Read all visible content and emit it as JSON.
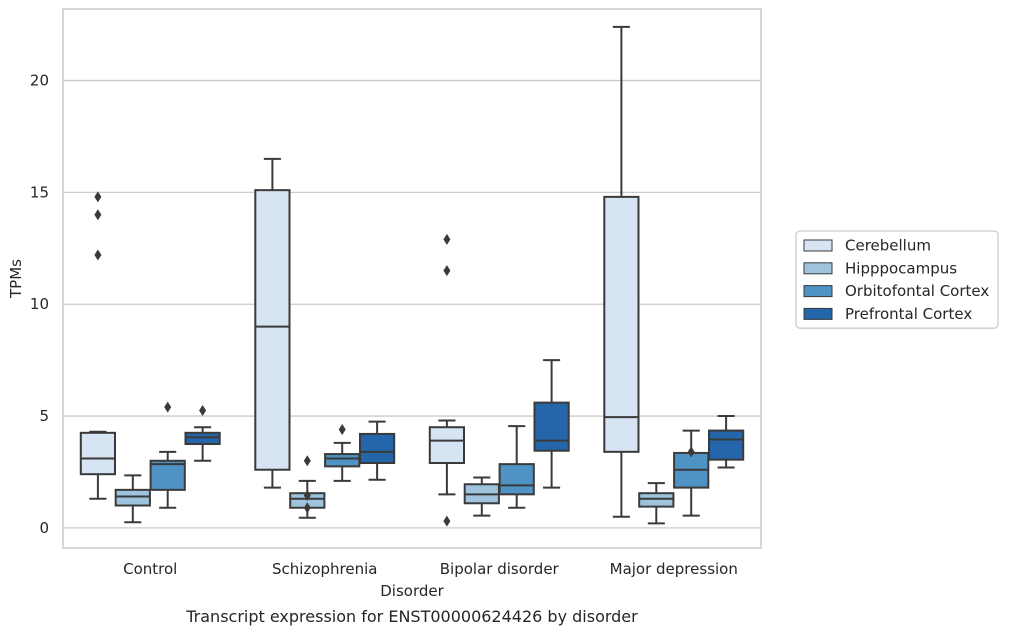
{
  "caption": "Transcript expression for ENST00000624426 by disorder",
  "chart_data": {
    "type": "box",
    "title": "",
    "xlabel": "Disorder",
    "ylabel": "TPMs",
    "ylim": [
      -0.9,
      23.2
    ],
    "yticks": [
      0,
      5,
      10,
      15,
      20
    ],
    "grid": true,
    "legend_position": "right-outside",
    "categories": [
      "Control",
      "Schizophrenia",
      "Bipolar disorder",
      "Major depression"
    ],
    "series": [
      {
        "name": "Cerebellum",
        "color": "#d6e4f3",
        "boxes": [
          {
            "whisker_low": 1.3,
            "q1": 2.4,
            "median": 3.1,
            "q3": 4.25,
            "whisker_high": 4.3,
            "outliers": [
              12.2,
              14.0,
              14.8
            ]
          },
          {
            "whisker_low": 1.8,
            "q1": 2.6,
            "median": 9.0,
            "q3": 15.1,
            "whisker_high": 16.5,
            "outliers": []
          },
          {
            "whisker_low": 1.5,
            "q1": 2.9,
            "median": 3.9,
            "q3": 4.5,
            "whisker_high": 4.8,
            "outliers": [
              0.3,
              11.5,
              12.9
            ]
          },
          {
            "whisker_low": 0.5,
            "q1": 3.4,
            "median": 4.95,
            "q3": 14.8,
            "whisker_high": 22.4,
            "outliers": []
          }
        ]
      },
      {
        "name": "Hipppocampus",
        "color": "#9ec4dd",
        "boxes": [
          {
            "whisker_low": 0.25,
            "q1": 1.0,
            "median": 1.4,
            "q3": 1.7,
            "whisker_high": 2.35,
            "outliers": []
          },
          {
            "whisker_low": 0.45,
            "q1": 0.9,
            "median": 1.3,
            "q3": 1.55,
            "whisker_high": 2.1,
            "outliers": [
              0.9,
              1.45,
              3.0
            ]
          },
          {
            "whisker_low": 0.55,
            "q1": 1.1,
            "median": 1.5,
            "q3": 1.95,
            "whisker_high": 2.25,
            "outliers": []
          },
          {
            "whisker_low": 0.2,
            "q1": 0.95,
            "median": 1.3,
            "q3": 1.55,
            "whisker_high": 2.0,
            "outliers": []
          }
        ]
      },
      {
        "name": "Orbitofontal Cortex",
        "color": "#4f93c4",
        "boxes": [
          {
            "whisker_low": 0.9,
            "q1": 1.7,
            "median": 2.85,
            "q3": 3.0,
            "whisker_high": 3.4,
            "outliers": [
              5.4
            ]
          },
          {
            "whisker_low": 2.1,
            "q1": 2.75,
            "median": 3.1,
            "q3": 3.3,
            "whisker_high": 3.8,
            "outliers": [
              4.4
            ]
          },
          {
            "whisker_low": 0.9,
            "q1": 1.5,
            "median": 1.9,
            "q3": 2.85,
            "whisker_high": 4.55,
            "outliers": []
          },
          {
            "whisker_low": 0.55,
            "q1": 1.8,
            "median": 2.6,
            "q3": 3.35,
            "whisker_high": 4.35,
            "outliers": [
              3.4
            ]
          }
        ]
      },
      {
        "name": "Prefrontal Cortex",
        "color": "#2565a9",
        "boxes": [
          {
            "whisker_low": 3.0,
            "q1": 3.75,
            "median": 4.05,
            "q3": 4.25,
            "whisker_high": 4.5,
            "outliers": [
              5.25
            ]
          },
          {
            "whisker_low": 2.15,
            "q1": 2.9,
            "median": 3.4,
            "q3": 4.2,
            "whisker_high": 4.75,
            "outliers": []
          },
          {
            "whisker_low": 1.8,
            "q1": 3.45,
            "median": 3.9,
            "q3": 5.6,
            "whisker_high": 7.5,
            "outliers": []
          },
          {
            "whisker_low": 2.7,
            "q1": 3.05,
            "median": 3.95,
            "q3": 4.35,
            "whisker_high": 5.0,
            "outliers": []
          }
        ]
      }
    ]
  }
}
